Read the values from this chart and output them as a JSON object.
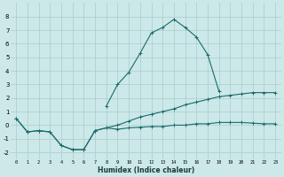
{
  "xlabel": "Humidex (Indice chaleur)",
  "background_color": "#cce8e8",
  "grid_color": "#aacccc",
  "line_color": "#1a6b6b",
  "xlim": [
    -0.5,
    23.5
  ],
  "ylim": [
    -2.5,
    9.0
  ],
  "yticks": [
    -2,
    -1,
    0,
    1,
    2,
    3,
    4,
    5,
    6,
    7,
    8
  ],
  "xticks": [
    0,
    1,
    2,
    3,
    4,
    5,
    6,
    7,
    8,
    9,
    10,
    11,
    12,
    13,
    14,
    15,
    16,
    17,
    18,
    19,
    20,
    21,
    22,
    23
  ],
  "line1_x": [
    0,
    1,
    2,
    3,
    4,
    5,
    6,
    7,
    8,
    9,
    10,
    11,
    12,
    13,
    14,
    15,
    16,
    17,
    18,
    19,
    20,
    21,
    22,
    23
  ],
  "line1_y": [
    0.5,
    -0.5,
    -0.4,
    -0.5,
    -1.5,
    -1.8,
    -1.8,
    -0.4,
    -0.2,
    -0.3,
    -0.2,
    -0.15,
    -0.1,
    -0.1,
    0.0,
    0.0,
    0.1,
    0.1,
    0.2,
    0.2,
    0.2,
    0.15,
    0.1,
    0.1
  ],
  "line2_x": [
    0,
    1,
    2,
    3,
    4,
    5,
    6,
    7,
    8,
    9,
    10,
    11,
    12,
    13,
    14,
    15,
    16,
    17,
    18,
    19,
    20,
    21,
    22,
    23
  ],
  "line2_y": [
    0.5,
    -0.5,
    -0.4,
    -0.5,
    -1.5,
    -1.8,
    -1.8,
    -0.4,
    -0.2,
    0.0,
    0.3,
    0.6,
    0.8,
    1.0,
    1.2,
    1.5,
    1.7,
    1.9,
    2.1,
    2.2,
    2.3,
    2.4,
    2.4,
    2.4
  ],
  "line3_x": [
    8,
    9,
    10,
    11,
    12,
    13,
    14,
    15,
    16,
    17,
    18
  ],
  "line3_y": [
    1.4,
    3.0,
    3.9,
    5.3,
    6.8,
    7.2,
    7.8,
    7.2,
    6.5,
    5.2,
    2.5
  ]
}
